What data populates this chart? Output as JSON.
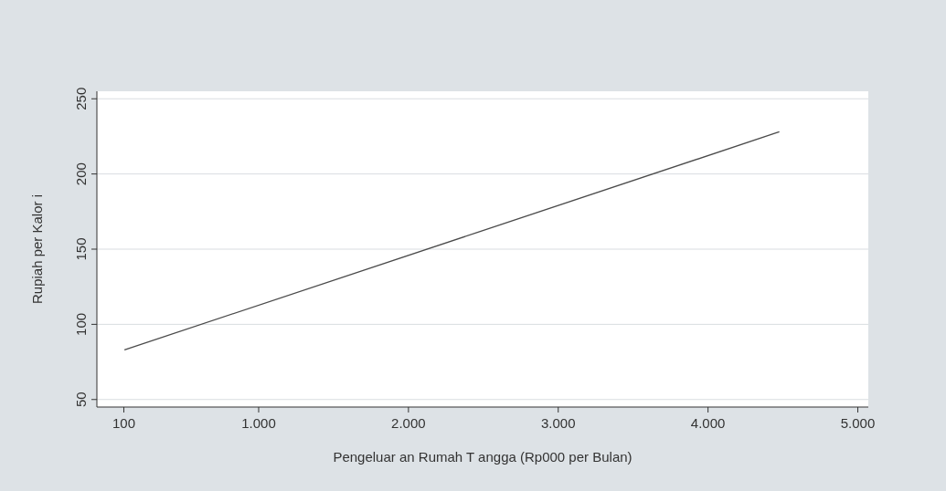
{
  "chart_data": {
    "type": "line",
    "xlabel": "Pengeluar an Rumah T angga (Rp000 per Bulan)",
    "ylabel": "Rupiah per Kalor   i",
    "x": [
      104,
      4476
    ],
    "series": [
      {
        "color": "#4a4a4a",
        "values": [
          83,
          228
        ]
      }
    ],
    "xlim": [
      -80,
      5070
    ],
    "xticks": [
      100,
      {
        "value": 1000,
        "label": "1.000"
      },
      {
        "value": 2000,
        "label": "2.000"
      },
      {
        "value": 3000,
        "label": "3.000"
      },
      {
        "value": 4000,
        "label": "4.000"
      },
      {
        "value": 5000,
        "label": "5.000"
      }
    ],
    "ylim": [
      45,
      255
    ],
    "yticks": [
      50,
      100,
      150,
      200,
      250
    ],
    "grid": "y"
  }
}
